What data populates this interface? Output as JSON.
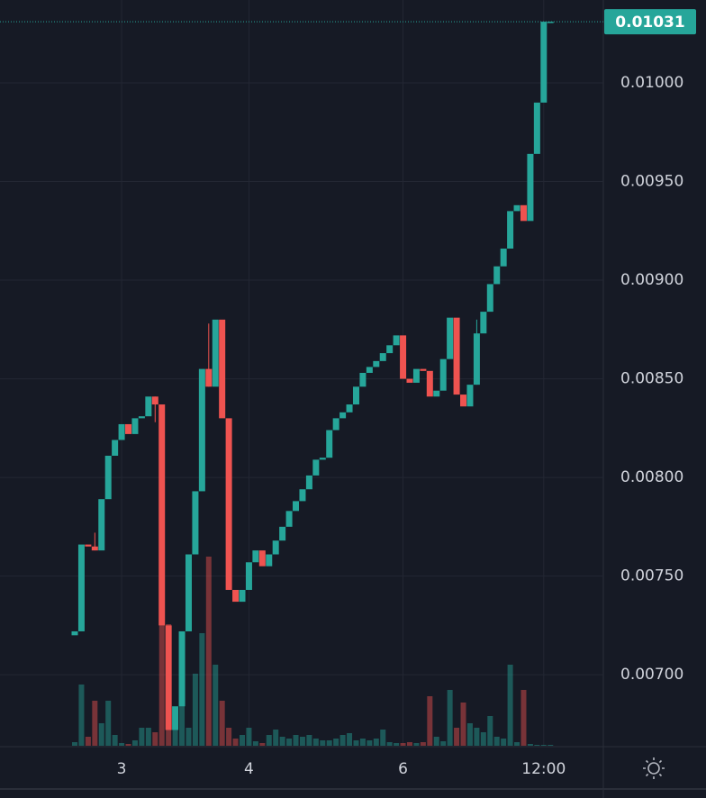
{
  "chart_data": {
    "type": "candlestick",
    "categories": [
      null,
      null,
      null,
      null,
      null,
      null,
      null,
      "3",
      null,
      null,
      null,
      null,
      null,
      null,
      null,
      null,
      null,
      null,
      null,
      null,
      null,
      null,
      null,
      null,
      null,
      null,
      "4",
      null,
      null,
      null,
      null,
      null,
      null,
      null,
      null,
      null,
      null,
      null,
      null,
      null,
      null,
      null,
      null,
      null,
      null,
      null,
      null,
      null,
      null,
      "6",
      null,
      null,
      null,
      null,
      null,
      null,
      null,
      null,
      null,
      null,
      null,
      null,
      null,
      null,
      null,
      null,
      null,
      null,
      null,
      null,
      "12:00",
      null
    ],
    "open": [
      0.0072,
      0.00722,
      0.00766,
      0.00765,
      0.00763,
      0.00789,
      0.00811,
      0.00819,
      0.00827,
      0.00822,
      0.0083,
      0.00831,
      0.00841,
      0.00837,
      0.00725,
      0.00672,
      0.00684,
      0.00722,
      0.00761,
      0.00793,
      0.00855,
      0.00846,
      0.0088,
      0.0083,
      0.00743,
      0.00737,
      0.00743,
      0.00757,
      0.00763,
      0.00755,
      0.00761,
      0.00768,
      0.00775,
      0.00783,
      0.00788,
      0.00794,
      0.00801,
      0.00809,
      0.0081,
      0.00824,
      0.0083,
      0.00833,
      0.00837,
      0.00846,
      0.00853,
      0.00856,
      0.00859,
      0.00863,
      0.00867,
      0.00872,
      0.0085,
      0.00848,
      0.00855,
      0.00854,
      0.00841,
      0.00844,
      0.0086,
      0.00881,
      0.00842,
      0.00836,
      0.00847,
      0.00873,
      0.00884,
      0.00898,
      0.00907,
      0.00916,
      0.00935,
      0.00938,
      0.0093,
      0.00964,
      0.0099,
      0.01031
    ],
    "high": [
      0.00722,
      0.00766,
      0.00766,
      0.00772,
      0.00789,
      0.00811,
      0.00819,
      0.00827,
      0.00827,
      0.0083,
      0.00831,
      0.00841,
      0.00841,
      0.00837,
      0.00725,
      0.00684,
      0.00722,
      0.00761,
      0.00793,
      0.00855,
      0.00878,
      0.0088,
      0.0088,
      0.0083,
      0.00743,
      0.00743,
      0.00757,
      0.00763,
      0.00763,
      0.00761,
      0.00768,
      0.00775,
      0.00783,
      0.00788,
      0.00794,
      0.00801,
      0.00809,
      0.0081,
      0.00824,
      0.0083,
      0.00833,
      0.00837,
      0.00846,
      0.00853,
      0.00856,
      0.00859,
      0.00863,
      0.00867,
      0.00872,
      0.00872,
      0.0085,
      0.00855,
      0.00855,
      0.00854,
      0.00844,
      0.0086,
      0.00881,
      0.00881,
      0.00842,
      0.00847,
      0.0088,
      0.00884,
      0.00898,
      0.00907,
      0.00916,
      0.00935,
      0.00938,
      0.00938,
      0.00964,
      0.0099,
      0.01031,
      0.01031
    ],
    "low": [
      0.0072,
      0.00722,
      0.00765,
      0.00763,
      0.00763,
      0.00789,
      0.00811,
      0.00819,
      0.00822,
      0.00822,
      0.0083,
      0.00831,
      0.00828,
      0.00725,
      0.00672,
      0.00672,
      0.00684,
      0.00722,
      0.00761,
      0.00793,
      0.00846,
      0.00846,
      0.0083,
      0.00743,
      0.00737,
      0.00737,
      0.00743,
      0.00757,
      0.00755,
      0.00755,
      0.00761,
      0.00768,
      0.00775,
      0.00783,
      0.00788,
      0.00794,
      0.00801,
      0.00809,
      0.0081,
      0.00824,
      0.0083,
      0.00833,
      0.00837,
      0.00846,
      0.00853,
      0.00856,
      0.00859,
      0.00863,
      0.00867,
      0.0085,
      0.00848,
      0.00848,
      0.00854,
      0.00841,
      0.00841,
      0.00844,
      0.0086,
      0.00842,
      0.00836,
      0.00836,
      0.00847,
      0.00873,
      0.00884,
      0.00898,
      0.00907,
      0.00916,
      0.00935,
      0.0093,
      0.0093,
      0.00964,
      0.0099,
      0.01031
    ],
    "close": [
      0.00722,
      0.00766,
      0.00765,
      0.00763,
      0.00789,
      0.00811,
      0.00819,
      0.00827,
      0.00822,
      0.0083,
      0.00831,
      0.00841,
      0.00837,
      0.00725,
      0.00672,
      0.00684,
      0.00722,
      0.00761,
      0.00793,
      0.00855,
      0.00846,
      0.0088,
      0.0083,
      0.00743,
      0.00737,
      0.00743,
      0.00757,
      0.00763,
      0.00755,
      0.00761,
      0.00768,
      0.00775,
      0.00783,
      0.00788,
      0.00794,
      0.00801,
      0.00809,
      0.0081,
      0.00824,
      0.0083,
      0.00833,
      0.00837,
      0.00846,
      0.00853,
      0.00856,
      0.00859,
      0.00863,
      0.00867,
      0.00872,
      0.0085,
      0.00848,
      0.00855,
      0.00854,
      0.00841,
      0.00844,
      0.0086,
      0.00881,
      0.00842,
      0.00836,
      0.00847,
      0.00873,
      0.00884,
      0.00898,
      0.00907,
      0.00916,
      0.00935,
      0.00938,
      0.0093,
      0.00964,
      0.0099,
      0.01031,
      0.01031
    ],
    "volume": [
      4,
      68,
      10,
      50,
      25,
      50,
      12,
      3,
      2,
      6,
      20,
      20,
      15,
      205,
      135,
      40,
      60,
      20,
      80,
      125,
      210,
      90,
      50,
      20,
      8,
      12,
      20,
      5,
      3,
      12,
      18,
      10,
      8,
      12,
      10,
      12,
      8,
      6,
      6,
      8,
      12,
      14,
      6,
      8,
      6,
      8,
      18,
      4,
      3,
      3,
      4,
      3,
      4,
      55,
      10,
      5,
      62,
      20,
      48,
      25,
      20,
      15,
      33,
      10,
      8,
      90,
      4,
      62,
      2,
      1,
      1,
      1
    ],
    "volume_lim": [
      0,
      240
    ],
    "up_color": "#26a69a",
    "down_color": "#ef5350",
    "ylim": [
      0.00664,
      0.01042
    ],
    "yticks": [
      {
        "value": 0.007,
        "label": "0.00700"
      },
      {
        "value": 0.0075,
        "label": "0.00750"
      },
      {
        "value": 0.008,
        "label": "0.00800"
      },
      {
        "value": 0.0085,
        "label": "0.00850"
      },
      {
        "value": 0.009,
        "label": "0.00900"
      },
      {
        "value": 0.0095,
        "label": "0.00950"
      },
      {
        "value": 0.01,
        "label": "0.01000"
      }
    ],
    "last_price": {
      "value": 0.01031,
      "label": "0.01031"
    },
    "grid": true
  }
}
